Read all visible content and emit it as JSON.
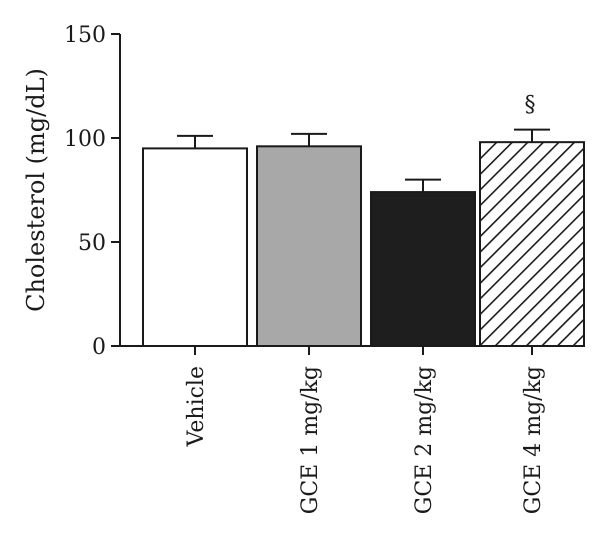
{
  "chart_data": {
    "type": "bar",
    "title": "",
    "xlabel": "",
    "ylabel": "Cholesterol (mg/dL)",
    "ylim": [
      0,
      150
    ],
    "yticks": [
      0,
      50,
      100,
      150
    ],
    "grid": false,
    "legend": "none",
    "categories": [
      "Vehicle",
      "GCE 1 mg/kg",
      "GCE 2 mg/kg",
      "GCE 4 mg/kg"
    ],
    "values": [
      95,
      96,
      74,
      98
    ],
    "errors": [
      6,
      6,
      6,
      6
    ],
    "bar_fills": [
      "white",
      "gray",
      "black",
      "hatched"
    ],
    "colors": {
      "white": "#ffffff",
      "gray": "#a8a8a8",
      "black": "#1e1e1e",
      "outline": "#1a1a1a"
    },
    "annotations": [
      {
        "category_index": 3,
        "text": "§"
      }
    ]
  }
}
